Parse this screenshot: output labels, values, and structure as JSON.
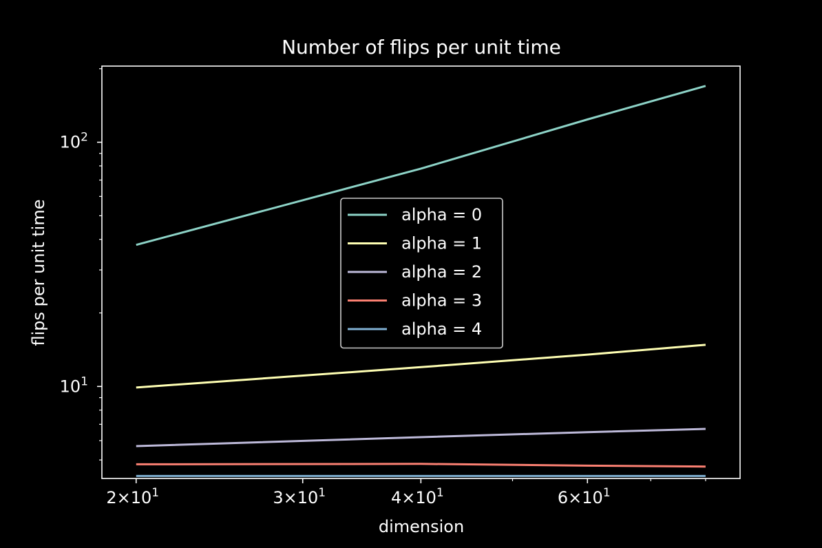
{
  "chart_data": {
    "type": "line",
    "title": "Number of flips per unit time",
    "xlabel": "dimension",
    "ylabel": "flips per unit time",
    "x_scale": "log",
    "y_scale": "log",
    "xlim": [
      18.4,
      87
    ],
    "ylim": [
      4.2,
      205
    ],
    "x": [
      20,
      40,
      60,
      80
    ],
    "x_ticks": [
      {
        "value": 20,
        "base": "2×10",
        "exp": "1"
      },
      {
        "value": 30,
        "base": "3×10",
        "exp": "1"
      },
      {
        "value": 40,
        "base": "4×10",
        "exp": "1"
      },
      {
        "value": 60,
        "base": "6×10",
        "exp": "1"
      }
    ],
    "y_ticks": [
      {
        "value": 10,
        "base": "10",
        "exp": "1"
      },
      {
        "value": 100,
        "base": "10",
        "exp": "2"
      }
    ],
    "grid": false,
    "legend_position": "center",
    "series": [
      {
        "name": "alpha = 0",
        "color": "#8dd3c7",
        "values": [
          38,
          78,
          124,
          170
        ]
      },
      {
        "name": "alpha = 1",
        "color": "#ffffb3",
        "values": [
          9.9,
          12,
          13.5,
          14.8
        ]
      },
      {
        "name": "alpha = 2",
        "color": "#bebada",
        "values": [
          5.7,
          6.2,
          6.5,
          6.7
        ]
      },
      {
        "name": "alpha = 3",
        "color": "#fb8072",
        "values": [
          4.8,
          4.82,
          4.74,
          4.7
        ]
      },
      {
        "name": "alpha = 4",
        "color": "#80b1d3",
        "values": [
          4.3,
          4.3,
          4.3,
          4.3
        ]
      }
    ]
  }
}
